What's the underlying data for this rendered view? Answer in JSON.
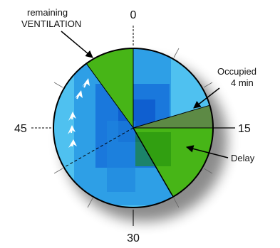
{
  "labels": {
    "remaining_line1": "remaining",
    "remaining_line2": "VENTILATION",
    "occupied_line1": "Occupied",
    "occupied_line2": "4 min",
    "delay": "Delay"
  },
  "dial": {
    "mark_0": "0",
    "mark_15": "15",
    "mark_30": "30",
    "mark_45": "45"
  },
  "colors": {
    "ventilation_green": "#47b517",
    "occupied_olive": "#5d8a45",
    "timer_blue_light": "#4fc1f0",
    "timer_blue_mid": "#2a9be0",
    "timer_blue_dark": "#0f5fd0",
    "outline": "#000000"
  }
}
